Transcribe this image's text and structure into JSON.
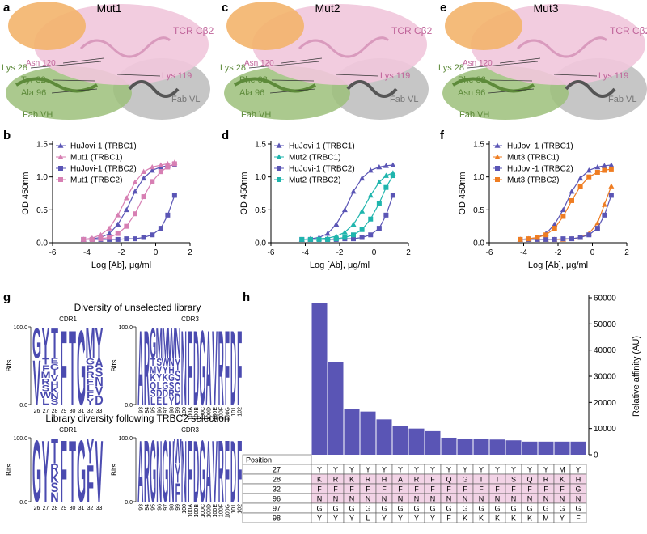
{
  "structures": [
    {
      "panel": "a",
      "title": "Mut1",
      "labels": {
        "tcr": "TCR Cβ2",
        "lys28": "Lys 28",
        "asn120": "Asn 120",
        "res32": "Tyr 32",
        "lys119": "Lys 119",
        "res96": "Ala 96",
        "fab_vl": "Fab VL",
        "fab_vh": "Fab VH"
      }
    },
    {
      "panel": "c",
      "title": "Mut2",
      "labels": {
        "tcr": "TCR Cβ2",
        "lys28": "Lys 28",
        "asn120": "Asn 120",
        "res32": "Phe 32",
        "lys119": "Lys 119",
        "res96": "Ala 96",
        "fab_vl": "Fab VL",
        "fab_vh": "Fab VH"
      }
    },
    {
      "panel": "e",
      "title": "Mut3",
      "labels": {
        "tcr": "TCR Cβ2",
        "lys28": "Lys 28",
        "asn120": "Asn 120",
        "res32": "Phe 32",
        "lys119": "Lys 119",
        "res96": "Asn 96",
        "fab_vl": "Fab VL",
        "fab_vh": "Fab VH"
      }
    }
  ],
  "chart_data": [
    {
      "type": "line",
      "panel": "b",
      "xlabel": "Log [Ab], μg/ml",
      "ylabel": "OD 450nm",
      "x": [
        -4.2,
        -3.7,
        -3.2,
        -2.7,
        -2.2,
        -1.7,
        -1.2,
        -0.7,
        -0.2,
        0.3,
        0.7,
        1.1
      ],
      "xlim": [
        -6,
        2
      ],
      "xticks": [
        -6,
        -4,
        -2,
        0,
        2
      ],
      "ylim": [
        0,
        1.5
      ],
      "yticks": [
        {
          "value": 0,
          "label": "0.0"
        },
        0.5,
        {
          "value": 1,
          "label": "1.0"
        },
        1.5
      ],
      "legend": "upper left",
      "series": [
        {
          "name": "HuJovi-1 (TRBC1)",
          "color": "#5a55b5",
          "marker": "triangle",
          "values": [
            0.05,
            0.06,
            0.08,
            0.14,
            0.28,
            0.5,
            0.78,
            0.98,
            1.1,
            1.15,
            1.17,
            1.18
          ]
        },
        {
          "name": "Mut1 (TRBC1)",
          "color": "#d77fb3",
          "marker": "triangle",
          "values": [
            0.05,
            0.07,
            0.12,
            0.22,
            0.42,
            0.68,
            0.92,
            1.08,
            1.15,
            1.18,
            1.2,
            1.22
          ]
        },
        {
          "name": "HuJovi-1 (TRBC2)",
          "color": "#5a55b5",
          "marker": "square",
          "values": [
            0.05,
            0.05,
            0.05,
            0.05,
            0.05,
            0.06,
            0.06,
            0.08,
            0.12,
            0.22,
            0.42,
            0.72
          ]
        },
        {
          "name": "Mut1 (TRBC2)",
          "color": "#d77fb3",
          "marker": "square",
          "values": [
            0.05,
            0.05,
            0.06,
            0.08,
            0.14,
            0.25,
            0.44,
            0.7,
            0.93,
            1.08,
            1.15,
            1.2
          ]
        }
      ]
    },
    {
      "type": "line",
      "panel": "d",
      "xlabel": "Log [Ab], μg/ml",
      "ylabel": "OD 450nm",
      "x": [
        -4.2,
        -3.7,
        -3.2,
        -2.7,
        -2.2,
        -1.7,
        -1.2,
        -0.7,
        -0.2,
        0.3,
        0.7,
        1.1
      ],
      "xlim": [
        -6,
        2
      ],
      "xticks": [
        -6,
        -4,
        -2,
        0,
        2
      ],
      "ylim": [
        0,
        1.5
      ],
      "yticks": [
        {
          "value": 0,
          "label": "0.0"
        },
        0.5,
        {
          "value": 1,
          "label": "1.0"
        },
        1.5
      ],
      "legend": "upper left",
      "series": [
        {
          "name": "HuJovi-1 (TRBC1)",
          "color": "#5a55b5",
          "marker": "triangle",
          "values": [
            0.05,
            0.06,
            0.08,
            0.14,
            0.28,
            0.5,
            0.78,
            0.98,
            1.1,
            1.15,
            1.17,
            1.18
          ]
        },
        {
          "name": "Mut2 (TRBC1)",
          "color": "#1fb5ad",
          "marker": "triangle",
          "values": [
            0.05,
            0.05,
            0.06,
            0.07,
            0.1,
            0.16,
            0.28,
            0.48,
            0.72,
            0.92,
            1.02,
            1.06
          ]
        },
        {
          "name": "HuJovi-1 (TRBC2)",
          "color": "#5a55b5",
          "marker": "square",
          "values": [
            0.05,
            0.05,
            0.05,
            0.05,
            0.05,
            0.06,
            0.06,
            0.08,
            0.12,
            0.22,
            0.42,
            0.72
          ]
        },
        {
          "name": "Mut2 (TRBC2)",
          "color": "#1fb5ad",
          "marker": "square",
          "values": [
            0.05,
            0.05,
            0.05,
            0.05,
            0.06,
            0.08,
            0.12,
            0.2,
            0.36,
            0.6,
            0.84,
            1.02
          ]
        }
      ]
    },
    {
      "type": "line",
      "panel": "f",
      "xlabel": "Log [Ab], μg/ml",
      "ylabel": "OD 450nm",
      "x": [
        -4.2,
        -3.7,
        -3.2,
        -2.7,
        -2.2,
        -1.7,
        -1.2,
        -0.7,
        -0.2,
        0.3,
        0.7,
        1.1
      ],
      "xlim": [
        -6,
        2
      ],
      "xticks": [
        -6,
        -4,
        -2,
        0,
        2
      ],
      "ylim": [
        0,
        1.5
      ],
      "yticks": [
        {
          "value": 0,
          "label": "0.0"
        },
        0.5,
        {
          "value": 1,
          "label": "1.0"
        },
        1.5
      ],
      "legend": "upper left",
      "series": [
        {
          "name": "HuJovi-1 (TRBC1)",
          "color": "#5a55b5",
          "marker": "triangle",
          "values": [
            0.05,
            0.06,
            0.08,
            0.14,
            0.28,
            0.5,
            0.78,
            0.98,
            1.1,
            1.15,
            1.17,
            1.18
          ]
        },
        {
          "name": "Mut3 (TRBC1)",
          "color": "#ef7d22",
          "marker": "triangle",
          "values": [
            0.05,
            0.05,
            0.05,
            0.05,
            0.05,
            0.05,
            0.06,
            0.08,
            0.14,
            0.3,
            0.58,
            0.86
          ]
        },
        {
          "name": "HuJovi-1 (TRBC2)",
          "color": "#5a55b5",
          "marker": "square",
          "values": [
            0.05,
            0.05,
            0.05,
            0.05,
            0.05,
            0.06,
            0.06,
            0.08,
            0.12,
            0.22,
            0.42,
            0.72
          ]
        },
        {
          "name": "Mut3 (TRBC2)",
          "color": "#ef7d22",
          "marker": "square",
          "values": [
            0.05,
            0.06,
            0.08,
            0.12,
            0.22,
            0.4,
            0.64,
            0.86,
            1.0,
            1.07,
            1.1,
            1.12
          ]
        }
      ]
    },
    {
      "type": "bar",
      "panel": "h",
      "ylabel": "Relative affinity (AU)",
      "color": "#5a55b5",
      "values": [
        58000,
        35500,
        17500,
        16500,
        13500,
        11000,
        10000,
        9000,
        6500,
        6000,
        6000,
        5800,
        5500,
        5000,
        5000,
        5000,
        5000
      ],
      "ylim": [
        0,
        60000
      ],
      "yticks": [
        0,
        10000,
        20000,
        30000,
        40000,
        50000,
        60000
      ],
      "table": {
        "header": "Position",
        "highlight_color": "#f2d3e6",
        "rows": [
          {
            "position": "27",
            "highlight": false,
            "cells": [
              "Y",
              "Y",
              "Y",
              "Y",
              "Y",
              "Y",
              "Y",
              "Y",
              "Y",
              "Y",
              "Y",
              "Y",
              "Y",
              "Y",
              "Y",
              "M",
              "Y"
            ]
          },
          {
            "position": "28",
            "highlight": true,
            "cells": [
              "K",
              "R",
              "K",
              "R",
              "H",
              "A",
              "R",
              "F",
              "Q",
              "G",
              "T",
              "T",
              "S",
              "Q",
              "R",
              "K",
              "H"
            ]
          },
          {
            "position": "32",
            "highlight": true,
            "cells": [
              "F",
              "F",
              "F",
              "F",
              "F",
              "F",
              "F",
              "F",
              "F",
              "F",
              "F",
              "F",
              "F",
              "F",
              "F",
              "F",
              "G"
            ]
          },
          {
            "position": "96",
            "highlight": true,
            "cells": [
              "N",
              "N",
              "N",
              "N",
              "N",
              "N",
              "N",
              "N",
              "N",
              "N",
              "N",
              "N",
              "N",
              "N",
              "N",
              "N",
              "N"
            ]
          },
          {
            "position": "97",
            "highlight": false,
            "cells": [
              "G",
              "G",
              "G",
              "G",
              "G",
              "G",
              "G",
              "G",
              "G",
              "G",
              "G",
              "G",
              "G",
              "G",
              "G",
              "G",
              "G"
            ]
          },
          {
            "position": "98",
            "highlight": false,
            "cells": [
              "Y",
              "Y",
              "Y",
              "L",
              "Y",
              "Y",
              "Y",
              "Y",
              "F",
              "K",
              "K",
              "K",
              "K",
              "K",
              "M",
              "Y",
              "F"
            ]
          }
        ]
      }
    }
  ],
  "logos": {
    "panel": "g",
    "color": "#4b4bb0",
    "sections": [
      {
        "title": "Diversity of unselected library",
        "panels": [
          {
            "name": "CDR1",
            "ylabel": "Bits",
            "yticks": [
              {
                "value": 0,
                "label": "0.0"
              },
              {
                "value": 100,
                "label": "100.0"
              }
            ],
            "positions": [
              "26",
              "27",
              "28",
              "29",
              "30",
              "31",
              "32",
              "33"
            ],
            "letters": [
              [
                "G",
                "V"
              ],
              [
                "Y",
                "T",
                "F",
                "M",
                "R",
                "S",
                "W",
                "L"
              ],
              [
                "T",
                "E",
                "G",
                "I",
                "V",
                "H",
                "K",
                "N",
                "S"
              ],
              [
                "F"
              ],
              [
                "T"
              ],
              [
                "G"
              ],
              [
                "M",
                "G",
                "P",
                "R",
                "E",
                "L",
                "F",
                "Y"
              ],
              [
                "Y",
                "A",
                "S",
                "N",
                "V",
                "D"
              ]
            ]
          },
          {
            "name": "CDR3",
            "ylabel": "Bits",
            "yticks": [
              {
                "value": 0,
                "label": "0.0"
              },
              {
                "value": 100,
                "label": "100.0"
              }
            ],
            "positions": [
              "93",
              "94",
              "95",
              "96",
              "97",
              "98",
              "99",
              "100",
              "100A",
              "100B",
              "100C",
              "100D",
              "100E",
              "100F",
              "100G",
              "101",
              "102"
            ],
            "letters": [
              [
                "A"
              ],
              [
                "R"
              ],
              [
                "G",
                "T",
                "M",
                "K",
                "Q",
                "S",
                "L"
              ],
              [
                "M",
                "S",
                "V",
                "Y",
                "L",
                "D",
                "E"
              ],
              [
                "M",
                "W",
                "Y",
                "K",
                "G",
                "D",
                "L"
              ],
              [
                "W",
                "N",
                "H",
                "G",
                "S",
                "R",
                "Y"
              ],
              [
                "N",
                "Y",
                "S",
                "G",
                "D"
              ],
              [
                "N"
              ],
              [
                "F"
              ],
              [
                "D"
              ],
              [
                "G"
              ],
              [
                "A"
              ],
              [
                "V"
              ],
              [
                "R"
              ],
              [
                "F"
              ],
              [
                "D"
              ],
              [
                "F"
              ]
            ]
          }
        ]
      },
      {
        "title": "Library diversity following TRBC2 selection",
        "panels": [
          {
            "name": "CDR1",
            "ylabel": "Bits",
            "yticks": [
              {
                "value": 0,
                "label": "0.0"
              },
              {
                "value": 100,
                "label": "100.0"
              }
            ],
            "positions": [
              "26",
              "27",
              "28",
              "29",
              "30",
              "31",
              "32",
              "33"
            ],
            "letters": [
              [
                "G"
              ],
              [
                "Y"
              ],
              [
                "T",
                "R",
                "K",
                "S",
                "N"
              ],
              [
                "F"
              ],
              [
                "T"
              ],
              [
                "G"
              ],
              [
                "Y",
                "F"
              ],
              [
                "V"
              ]
            ]
          },
          {
            "name": "CDR3",
            "ylabel": "Bits",
            "yticks": [
              {
                "value": 0,
                "label": "0.0"
              },
              {
                "value": 100,
                "label": "100.0"
              }
            ],
            "positions": [
              "93",
              "94",
              "95",
              "96",
              "97",
              "98",
              "99",
              "100",
              "100A",
              "100B",
              "100C",
              "100D",
              "100E",
              "100F",
              "100G",
              "101",
              "102"
            ],
            "letters": [
              [
                "A"
              ],
              [
                "R"
              ],
              [
                "G"
              ],
              [
                "N"
              ],
              [
                "G"
              ],
              [
                "N"
              ],
              [
                "W",
                "Y",
                "F"
              ],
              [
                "N"
              ],
              [
                "F"
              ],
              [
                "D"
              ],
              [
                "G"
              ],
              [
                "A"
              ],
              [
                "V"
              ],
              [
                "R"
              ],
              [
                "F"
              ],
              [
                "D"
              ],
              [
                "F"
              ]
            ]
          }
        ]
      }
    ]
  }
}
